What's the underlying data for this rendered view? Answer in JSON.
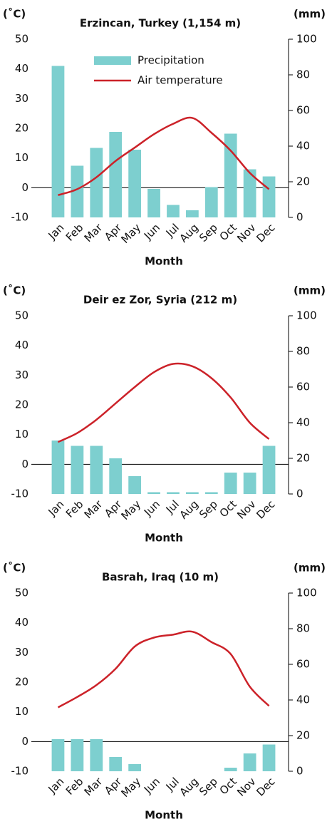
{
  "chart_data": [
    {
      "type": "bar_line",
      "title": "Erzincan, Turkey (1,154 m)",
      "y_label": "(˚C)",
      "y2_label": "(mm)",
      "x_label": "Month",
      "categories": [
        "Jan",
        "Feb",
        "Mar",
        "Apr",
        "May",
        "Jun",
        "Jul",
        "Aug",
        "Sep",
        "Oct",
        "Nov",
        "Dec"
      ],
      "ylim": [
        -10,
        50
      ],
      "yticks": [
        -10,
        0,
        10,
        20,
        30,
        40,
        50
      ],
      "y2lim": [
        0,
        100
      ],
      "y2ticks": [
        0,
        20,
        40,
        60,
        80,
        100
      ],
      "legend": "top",
      "series": [
        {
          "name": "Precipitation",
          "color": "#7dcfcf",
          "axis": "y2",
          "kind": "bar",
          "values": [
            85,
            29,
            39,
            48,
            38,
            16,
            7,
            4,
            17,
            47,
            27,
            23
          ]
        },
        {
          "name": "Air temperature",
          "color": "#cc2229",
          "kind": "line",
          "values": [
            -2.5,
            -0.5,
            3.5,
            9,
            13.5,
            18,
            21.5,
            23.5,
            18.5,
            12.5,
            5,
            -0.5
          ]
        }
      ]
    },
    {
      "type": "bar_line",
      "title": "Deir ez Zor, Syria (212 m)",
      "y_label": "(˚C)",
      "y2_label": "(mm)",
      "x_label": "Month",
      "categories": [
        "Jan",
        "Feb",
        "Mar",
        "Apr",
        "May",
        "Jun",
        "Jul",
        "Aug",
        "Sep",
        "Oct",
        "Nov",
        "Dec"
      ],
      "ylim": [
        -10,
        50
      ],
      "yticks": [
        -10,
        0,
        10,
        20,
        30,
        40,
        50
      ],
      "y2lim": [
        0,
        100
      ],
      "y2ticks": [
        0,
        20,
        40,
        60,
        80,
        100
      ],
      "series": [
        {
          "color": "#7dcfcf",
          "axis": "y2",
          "kind": "bar",
          "values": [
            30,
            27,
            27,
            20,
            10,
            1,
            1,
            1,
            1,
            12,
            12,
            27
          ]
        },
        {
          "color": "#cc2229",
          "kind": "line",
          "values": [
            7.5,
            10.5,
            15,
            20.5,
            26,
            31,
            33.8,
            33,
            29,
            22.5,
            14,
            8.5
          ]
        }
      ]
    },
    {
      "type": "bar_line",
      "title": "Basrah, Iraq (10 m)",
      "y_label": "(˚C)",
      "y2_label": "(mm)",
      "x_label": "Month",
      "categories": [
        "Jan",
        "Feb",
        "Mar",
        "Apr",
        "May",
        "Jun",
        "Jul",
        "Aug",
        "Sep",
        "Oct",
        "Nov",
        "Dec"
      ],
      "ylim": [
        -10,
        50
      ],
      "yticks": [
        -10,
        0,
        10,
        20,
        30,
        40,
        50
      ],
      "y2lim": [
        0,
        100
      ],
      "y2ticks": [
        0,
        20,
        40,
        60,
        80,
        100
      ],
      "series": [
        {
          "color": "#7dcfcf",
          "axis": "y2",
          "kind": "bar",
          "values": [
            18,
            18,
            18,
            8,
            4,
            0,
            0,
            0,
            0,
            2,
            10,
            15
          ]
        },
        {
          "color": "#cc2229",
          "kind": "line",
          "values": [
            11.5,
            15,
            19,
            24.5,
            32,
            35,
            36,
            37,
            33.5,
            29.5,
            18.5,
            12
          ]
        }
      ]
    }
  ]
}
